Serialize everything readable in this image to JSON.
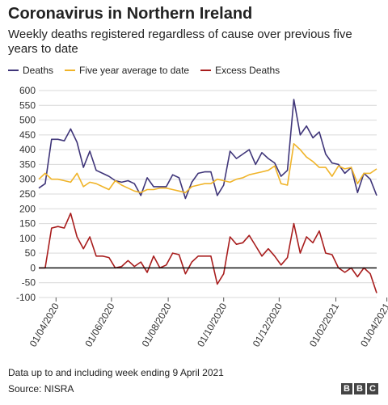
{
  "title": "Coronavirus in Northern Ireland",
  "subtitle": "Weekly deaths registered regardless of cause over previous five years to date",
  "footnote": "Data up to and including week ending 9 April 2021",
  "source": "Source: NISRA",
  "logo": [
    "B",
    "B",
    "C"
  ],
  "colors": {
    "deaths": "#3f3579",
    "average": "#f0b429",
    "excess": "#a81d1d",
    "zero_line": "#000000",
    "grid": "#d9d9d9"
  },
  "chart_data": {
    "type": "line",
    "ylim": [
      -100,
      600
    ],
    "yticks": [
      600,
      550,
      500,
      450,
      400,
      350,
      300,
      250,
      200,
      150,
      100,
      50,
      0,
      -50,
      -100
    ],
    "x_start": "2020-03-13",
    "x_interval_days": 7,
    "xtick_labels": [
      "01/04/2020",
      "01/06/2020",
      "01/08/2020",
      "01/10/2020",
      "01/12/2020",
      "01/02/2021",
      "01/04/2021"
    ],
    "xtick_weeks": [
      2.7,
      11.4,
      20.3,
      29.0,
      37.7,
      46.6,
      54.6
    ],
    "series": [
      {
        "name": "Deaths",
        "key": "deaths",
        "values": [
          270,
          285,
          435,
          435,
          430,
          470,
          425,
          340,
          395,
          330,
          320,
          310,
          295,
          290,
          295,
          285,
          245,
          305,
          275,
          275,
          275,
          315,
          305,
          235,
          290,
          320,
          325,
          325,
          245,
          280,
          395,
          370,
          385,
          400,
          350,
          390,
          370,
          355,
          310,
          330,
          570,
          450,
          480,
          440,
          460,
          385,
          355,
          350,
          320,
          340,
          255,
          320,
          300,
          245
        ]
      },
      {
        "name": "Five year average to date",
        "key": "average",
        "values": [
          300,
          320,
          300,
          300,
          295,
          290,
          320,
          275,
          290,
          285,
          275,
          265,
          295,
          280,
          270,
          260,
          255,
          265,
          265,
          270,
          270,
          265,
          260,
          255,
          275,
          280,
          285,
          285,
          300,
          295,
          290,
          300,
          305,
          315,
          320,
          325,
          330,
          345,
          285,
          280,
          420,
          400,
          375,
          360,
          340,
          340,
          310,
          345,
          335,
          340,
          285,
          320,
          320,
          335
        ]
      },
      {
        "name": "Excess Deaths",
        "key": "excess",
        "values": [
          0,
          0,
          135,
          140,
          135,
          185,
          105,
          65,
          105,
          40,
          40,
          35,
          0,
          5,
          25,
          5,
          20,
          -15,
          40,
          0,
          10,
          50,
          45,
          -20,
          20,
          40,
          40,
          40,
          -55,
          -20,
          105,
          80,
          85,
          110,
          75,
          40,
          65,
          40,
          10,
          35,
          150,
          50,
          105,
          85,
          125,
          50,
          45,
          0,
          -15,
          0,
          -30,
          0,
          -20,
          -85
        ]
      }
    ]
  }
}
